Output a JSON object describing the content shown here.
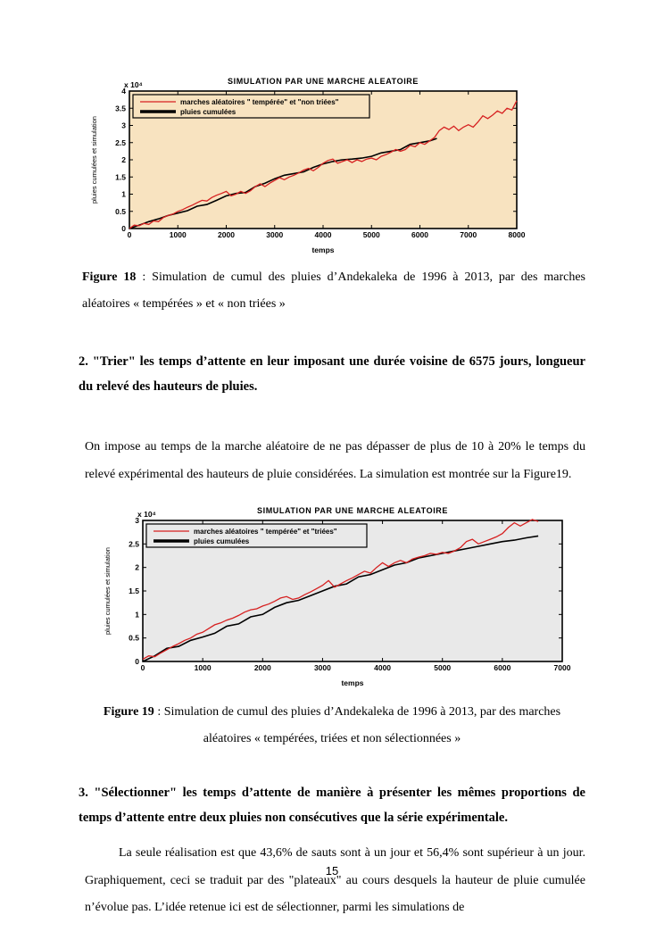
{
  "figure18": {
    "caption_label": "Figure 18",
    "caption_text": " : Simulation de cumul des pluies d’Andekaleka de 1996 à 2013, par des marches aléatoires « tempérées » et « non triées »"
  },
  "figure19": {
    "caption_label": "Figure 19",
    "caption_text": " : Simulation  de cumul des pluies d’Andekaleka de 1996 à 2013, par des marches aléatoires « tempérées, triées et non sélectionnées »"
  },
  "section2": {
    "heading": "2. \"Trier\" les temps d’attente en leur imposant une durée voisine de 6575 jours, longueur du relevé des hauteurs de pluies.",
    "paragraph": "On impose au temps de la marche aléatoire de ne pas dépasser de plus de 10 à 20% le temps du relevé expérimental des hauteurs de pluie considérées. La simulation est montrée sur la Figure19."
  },
  "section3": {
    "heading": "3. \"Sélectionner\" les temps d’attente de manière à présenter les mêmes proportions de temps d’attente entre deux pluies non consécutives que la série expérimentale.",
    "paragraph": "La seule réalisation est que  43,6% de sauts sont à un jour et 56,4% sont supérieur à un jour. Graphiquement, ceci se traduit par des \"plateaux\" au cours desquels la hauteur de pluie cumulée n’évolue pas. L’idée retenue ici est de sélectionner, parmi les simulations de"
  },
  "page": {
    "number": "15"
  },
  "chart_data": [
    {
      "type": "line",
      "title": "SIMULATION PAR UNE MARCHE ALEATOIRE",
      "xlabel": "temps",
      "ylabel": "pluies cumulées et simulation",
      "y_scale_note": "x 10⁴",
      "xlim": [
        0,
        8000
      ],
      "ylim": [
        0,
        4
      ],
      "xticks": [
        0,
        1000,
        2000,
        3000,
        4000,
        5000,
        6000,
        7000,
        8000
      ],
      "yticks": [
        0,
        0.5,
        1,
        1.5,
        2,
        2.5,
        3,
        3.5,
        4
      ],
      "grid": false,
      "legend_position": "top-left",
      "plot_bg": "#f8e3c0",
      "legend": [
        {
          "label": "marches aléatoires \" tempérée\" et \"non triées\"",
          "color": "#d62020",
          "width": 1.3
        },
        {
          "label": "pluies cumulées",
          "color": "#000000",
          "width": 3.5
        }
      ],
      "series": [
        {
          "name": "pluies cumulées",
          "color": "#000000",
          "width": 1.6,
          "points": [
            [
              0,
              0
            ],
            [
              200,
              0.1
            ],
            [
              400,
              0.2
            ],
            [
              600,
              0.28
            ],
            [
              800,
              0.38
            ],
            [
              1000,
              0.45
            ],
            [
              1200,
              0.52
            ],
            [
              1400,
              0.65
            ],
            [
              1600,
              0.7
            ],
            [
              1800,
              0.82
            ],
            [
              2000,
              0.95
            ],
            [
              2200,
              1.02
            ],
            [
              2400,
              1.05
            ],
            [
              2600,
              1.22
            ],
            [
              2800,
              1.32
            ],
            [
              3000,
              1.45
            ],
            [
              3200,
              1.55
            ],
            [
              3400,
              1.6
            ],
            [
              3600,
              1.65
            ],
            [
              3800,
              1.78
            ],
            [
              4000,
              1.88
            ],
            [
              4200,
              1.95
            ],
            [
              4400,
              2.0
            ],
            [
              4600,
              2.02
            ],
            [
              4800,
              2.05
            ],
            [
              5000,
              2.1
            ],
            [
              5200,
              2.2
            ],
            [
              5400,
              2.25
            ],
            [
              5600,
              2.3
            ],
            [
              5800,
              2.45
            ],
            [
              6000,
              2.5
            ],
            [
              6200,
              2.55
            ],
            [
              6350,
              2.62
            ]
          ]
        },
        {
          "name": "marches aléatoires \" tempérée\" et \"non triées\"",
          "color": "#d62020",
          "width": 1.3,
          "points": [
            [
              0,
              0
            ],
            [
              100,
              0.1
            ],
            [
              200,
              0.08
            ],
            [
              300,
              0.15
            ],
            [
              400,
              0.12
            ],
            [
              500,
              0.22
            ],
            [
              600,
              0.2
            ],
            [
              700,
              0.32
            ],
            [
              800,
              0.38
            ],
            [
              900,
              0.42
            ],
            [
              1000,
              0.5
            ],
            [
              1100,
              0.55
            ],
            [
              1200,
              0.62
            ],
            [
              1300,
              0.68
            ],
            [
              1400,
              0.75
            ],
            [
              1500,
              0.82
            ],
            [
              1600,
              0.8
            ],
            [
              1700,
              0.9
            ],
            [
              1800,
              0.97
            ],
            [
              1900,
              1.02
            ],
            [
              2000,
              1.08
            ],
            [
              2100,
              0.95
            ],
            [
              2200,
              1.0
            ],
            [
              2300,
              1.08
            ],
            [
              2400,
              1.02
            ],
            [
              2500,
              1.1
            ],
            [
              2600,
              1.22
            ],
            [
              2700,
              1.3
            ],
            [
              2800,
              1.22
            ],
            [
              2900,
              1.32
            ],
            [
              3000,
              1.4
            ],
            [
              3100,
              1.48
            ],
            [
              3200,
              1.42
            ],
            [
              3300,
              1.5
            ],
            [
              3400,
              1.55
            ],
            [
              3500,
              1.62
            ],
            [
              3600,
              1.7
            ],
            [
              3700,
              1.75
            ],
            [
              3800,
              1.68
            ],
            [
              3900,
              1.78
            ],
            [
              4000,
              1.9
            ],
            [
              4100,
              1.98
            ],
            [
              4200,
              2.02
            ],
            [
              4300,
              1.9
            ],
            [
              4400,
              1.95
            ],
            [
              4500,
              2.0
            ],
            [
              4600,
              1.92
            ],
            [
              4700,
              2.0
            ],
            [
              4800,
              1.95
            ],
            [
              4900,
              2.02
            ],
            [
              5000,
              2.05
            ],
            [
              5100,
              2.0
            ],
            [
              5200,
              2.1
            ],
            [
              5300,
              2.15
            ],
            [
              5400,
              2.22
            ],
            [
              5500,
              2.3
            ],
            [
              5600,
              2.25
            ],
            [
              5700,
              2.3
            ],
            [
              5800,
              2.42
            ],
            [
              5900,
              2.38
            ],
            [
              6000,
              2.5
            ],
            [
              6100,
              2.45
            ],
            [
              6200,
              2.55
            ],
            [
              6300,
              2.65
            ],
            [
              6400,
              2.85
            ],
            [
              6500,
              2.95
            ],
            [
              6600,
              2.88
            ],
            [
              6700,
              2.98
            ],
            [
              6800,
              2.85
            ],
            [
              6900,
              2.95
            ],
            [
              7000,
              3.02
            ],
            [
              7100,
              2.95
            ],
            [
              7200,
              3.1
            ],
            [
              7300,
              3.28
            ],
            [
              7400,
              3.2
            ],
            [
              7500,
              3.3
            ],
            [
              7600,
              3.42
            ],
            [
              7700,
              3.35
            ],
            [
              7800,
              3.5
            ],
            [
              7900,
              3.45
            ],
            [
              8000,
              3.72
            ]
          ]
        }
      ]
    },
    {
      "type": "line",
      "title": "SIMULATION PAR UNE MARCHE ALEATOIRE",
      "xlabel": "temps",
      "ylabel": "pluies cumulées et simulation",
      "y_scale_note": "x 10⁴",
      "xlim": [
        0,
        7000
      ],
      "ylim": [
        0,
        3
      ],
      "xticks": [
        0,
        1000,
        2000,
        3000,
        4000,
        5000,
        6000,
        7000
      ],
      "yticks": [
        0,
        0.5,
        1,
        1.5,
        2,
        2.5,
        3
      ],
      "grid": false,
      "legend_position": "top-left",
      "plot_bg": "#e9e9e9",
      "legend": [
        {
          "label": "marches aléatoires \" tempérée\" et \"triées\"",
          "color": "#d62020",
          "width": 1.3
        },
        {
          "label": "pluies cumulées",
          "color": "#000000",
          "width": 3.5
        }
      ],
      "series": [
        {
          "name": "pluies cumulées",
          "color": "#000000",
          "width": 1.6,
          "points": [
            [
              0,
              0
            ],
            [
              200,
              0.12
            ],
            [
              400,
              0.28
            ],
            [
              600,
              0.32
            ],
            [
              800,
              0.45
            ],
            [
              1000,
              0.52
            ],
            [
              1200,
              0.6
            ],
            [
              1400,
              0.75
            ],
            [
              1600,
              0.8
            ],
            [
              1800,
              0.95
            ],
            [
              2000,
              1.0
            ],
            [
              2200,
              1.15
            ],
            [
              2400,
              1.25
            ],
            [
              2600,
              1.3
            ],
            [
              2800,
              1.4
            ],
            [
              3000,
              1.5
            ],
            [
              3200,
              1.6
            ],
            [
              3400,
              1.65
            ],
            [
              3600,
              1.8
            ],
            [
              3800,
              1.85
            ],
            [
              4000,
              1.95
            ],
            [
              4200,
              2.05
            ],
            [
              4400,
              2.1
            ],
            [
              4600,
              2.2
            ],
            [
              4800,
              2.25
            ],
            [
              5000,
              2.3
            ],
            [
              5200,
              2.35
            ],
            [
              5400,
              2.4
            ],
            [
              5600,
              2.45
            ],
            [
              5800,
              2.5
            ],
            [
              6000,
              2.55
            ],
            [
              6200,
              2.58
            ],
            [
              6400,
              2.63
            ],
            [
              6600,
              2.67
            ]
          ]
        },
        {
          "name": "marches aléatoires \" tempérée\" et \"triées\"",
          "color": "#d62020",
          "width": 1.3,
          "points": [
            [
              0,
              0.05
            ],
            [
              100,
              0.12
            ],
            [
              200,
              0.1
            ],
            [
              300,
              0.18
            ],
            [
              400,
              0.25
            ],
            [
              500,
              0.32
            ],
            [
              600,
              0.38
            ],
            [
              700,
              0.45
            ],
            [
              800,
              0.5
            ],
            [
              900,
              0.58
            ],
            [
              1000,
              0.62
            ],
            [
              1100,
              0.7
            ],
            [
              1200,
              0.78
            ],
            [
              1300,
              0.82
            ],
            [
              1400,
              0.88
            ],
            [
              1500,
              0.92
            ],
            [
              1600,
              0.98
            ],
            [
              1700,
              1.05
            ],
            [
              1800,
              1.1
            ],
            [
              1900,
              1.12
            ],
            [
              2000,
              1.18
            ],
            [
              2100,
              1.22
            ],
            [
              2200,
              1.28
            ],
            [
              2300,
              1.35
            ],
            [
              2400,
              1.38
            ],
            [
              2500,
              1.32
            ],
            [
              2600,
              1.35
            ],
            [
              2700,
              1.42
            ],
            [
              2800,
              1.48
            ],
            [
              2900,
              1.55
            ],
            [
              3000,
              1.62
            ],
            [
              3100,
              1.72
            ],
            [
              3200,
              1.58
            ],
            [
              3300,
              1.65
            ],
            [
              3400,
              1.72
            ],
            [
              3500,
              1.78
            ],
            [
              3600,
              1.85
            ],
            [
              3700,
              1.92
            ],
            [
              3800,
              1.88
            ],
            [
              3900,
              2.0
            ],
            [
              4000,
              2.1
            ],
            [
              4100,
              2.02
            ],
            [
              4200,
              2.1
            ],
            [
              4300,
              2.15
            ],
            [
              4400,
              2.1
            ],
            [
              4500,
              2.18
            ],
            [
              4600,
              2.22
            ],
            [
              4700,
              2.25
            ],
            [
              4800,
              2.3
            ],
            [
              4900,
              2.28
            ],
            [
              5000,
              2.32
            ],
            [
              5100,
              2.3
            ],
            [
              5200,
              2.35
            ],
            [
              5300,
              2.42
            ],
            [
              5400,
              2.55
            ],
            [
              5500,
              2.6
            ],
            [
              5600,
              2.5
            ],
            [
              5700,
              2.55
            ],
            [
              5800,
              2.6
            ],
            [
              5900,
              2.65
            ],
            [
              6000,
              2.72
            ],
            [
              6100,
              2.85
            ],
            [
              6200,
              2.95
            ],
            [
              6300,
              2.88
            ],
            [
              6400,
              2.95
            ],
            [
              6500,
              3.02
            ],
            [
              6600,
              2.98
            ]
          ]
        }
      ]
    }
  ]
}
